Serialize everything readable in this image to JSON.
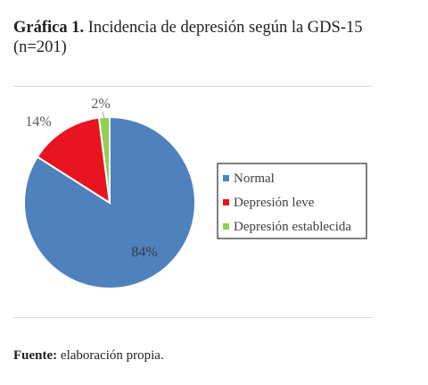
{
  "figure": {
    "label": "Gráfica 1.",
    "title": "Incidencia de depresión según la GDS-15 (n=201)"
  },
  "chart_data": {
    "type": "pie",
    "labels": [
      "Normal",
      "Depresión leve",
      "Depresión establecida"
    ],
    "values": [
      84,
      14,
      2
    ],
    "data_labels": [
      "84%",
      "14%",
      "2%"
    ],
    "colors": [
      "#4f81bd",
      "#e8141f",
      "#92d050"
    ],
    "legend": "right"
  },
  "source": {
    "label": "Fuente:",
    "text": "elaboración propia."
  }
}
